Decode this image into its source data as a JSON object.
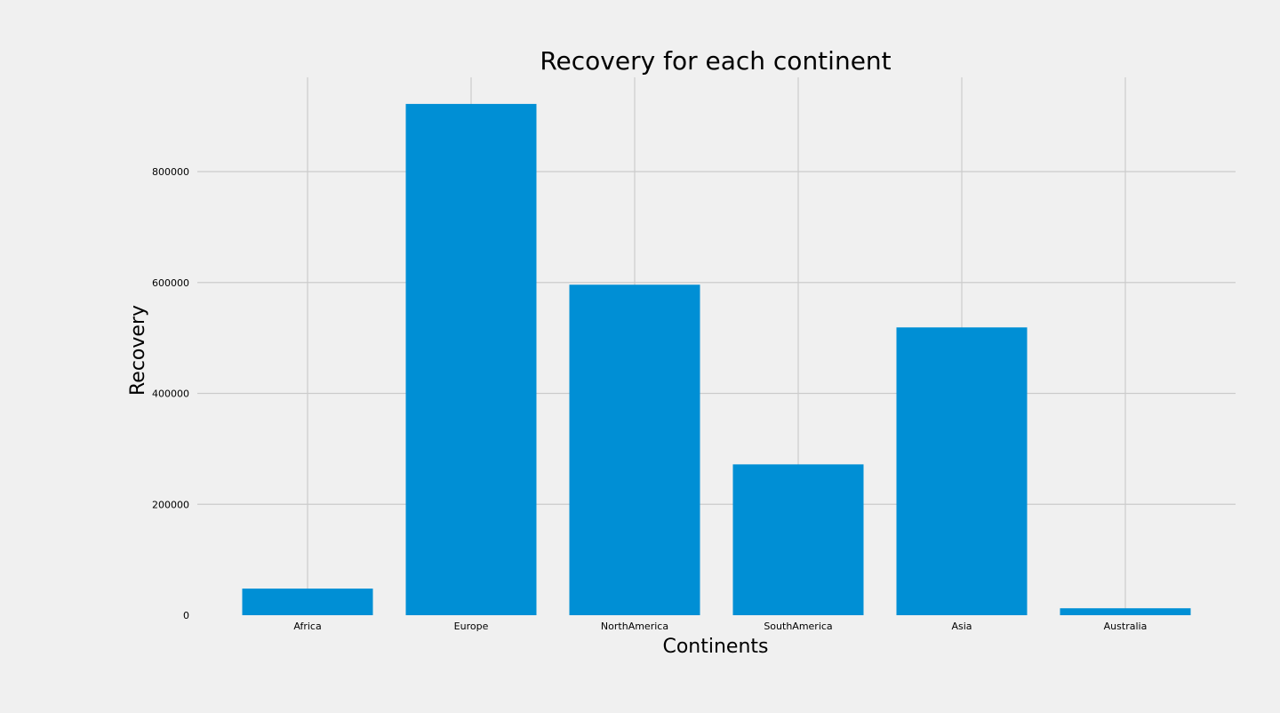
{
  "colors": {
    "background": "#f0f0f0",
    "bar": "#008fd5",
    "grid": "#cbcbcb",
    "text": "#000000"
  },
  "chart_data": {
    "type": "bar",
    "title": "Recovery for each continent",
    "xlabel": "Continents",
    "ylabel": "Recovery",
    "categories": [
      "Africa",
      "Europe",
      "NorthAmerica",
      "SouthAmerica",
      "Asia",
      "Australia"
    ],
    "values": [
      48000,
      922000,
      596000,
      272000,
      519000,
      12500
    ],
    "ylim": [
      0,
      970000
    ],
    "yticks": [
      0,
      200000,
      400000,
      600000,
      800000
    ],
    "ytick_labels": [
      "0",
      "200000",
      "400000",
      "600000",
      "800000"
    ],
    "grid": true,
    "legend": "none"
  }
}
